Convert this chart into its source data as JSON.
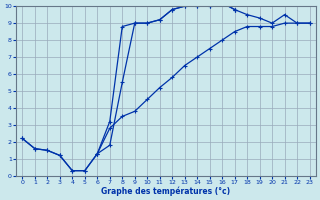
{
  "xlabel": "Graphe des températures (°c)",
  "xlim": [
    -0.5,
    23.5
  ],
  "ylim": [
    0,
    10
  ],
  "xticks": [
    0,
    1,
    2,
    3,
    4,
    5,
    6,
    7,
    8,
    9,
    10,
    11,
    12,
    13,
    14,
    15,
    16,
    17,
    18,
    19,
    20,
    21,
    22,
    23
  ],
  "yticks": [
    0,
    1,
    2,
    3,
    4,
    5,
    6,
    7,
    8,
    9,
    10
  ],
  "bg_color": "#cce8ec",
  "grid_color": "#99aabb",
  "line_color": "#0033aa",
  "line1_x": [
    0,
    1,
    2,
    3,
    4,
    5,
    6,
    7,
    8,
    9,
    10,
    11,
    12,
    13,
    14,
    15,
    16,
    17
  ],
  "line1_y": [
    2.2,
    1.6,
    1.5,
    1.2,
    0.3,
    0.3,
    1.3,
    3.2,
    8.8,
    9.0,
    9.0,
    9.2,
    9.8,
    10.0,
    10.0,
    10.0,
    10.2,
    9.8
  ],
  "line2_x": [
    0,
    1,
    2,
    3,
    4,
    5,
    6,
    7,
    8,
    9,
    10,
    11,
    12,
    13,
    14,
    15,
    16,
    17,
    18,
    19,
    20,
    21,
    22,
    23
  ],
  "line2_y": [
    2.2,
    1.6,
    1.5,
    1.2,
    0.3,
    0.3,
    1.3,
    2.8,
    3.5,
    3.8,
    4.5,
    5.2,
    5.8,
    6.5,
    7.0,
    7.5,
    8.0,
    8.5,
    8.8,
    8.8,
    8.8,
    9.0,
    9.0,
    9.0
  ],
  "line3_x": [
    17,
    18,
    19,
    20,
    21,
    22,
    23
  ],
  "line3_y": [
    9.8,
    9.5,
    9.3,
    9.0,
    9.5,
    9.0,
    9.0
  ],
  "line4_x": [
    6,
    7,
    8,
    9,
    10,
    11,
    12,
    13,
    14,
    15,
    16,
    17
  ],
  "line4_y": [
    1.3,
    1.8,
    5.5,
    9.0,
    9.0,
    9.2,
    9.8,
    10.0,
    10.0,
    10.0,
    10.2,
    9.8
  ]
}
